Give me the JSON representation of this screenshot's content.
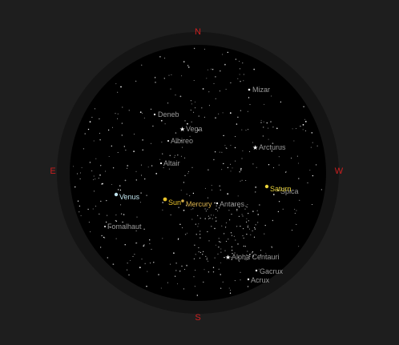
{
  "compass": {
    "north": "N",
    "south": "S",
    "east": "E",
    "west": "W"
  },
  "colors": {
    "background": "#1e1e1e",
    "sky_outer": "#141414",
    "sky_inner": "#000000",
    "compass": "#cc1f1f",
    "star_label": "#9a9a9a",
    "star": "#ffffff"
  },
  "named_stars": [
    {
      "name": "Mizar"
    },
    {
      "name": "Deneb"
    },
    {
      "name": "Vega"
    },
    {
      "name": "Albireo"
    },
    {
      "name": "Arcturus"
    },
    {
      "name": "Altair"
    },
    {
      "name": "Spica"
    },
    {
      "name": "Antares"
    },
    {
      "name": "Fomalhaut"
    },
    {
      "name": "Alpha Centauri"
    },
    {
      "name": "Gacrux"
    },
    {
      "name": "Acrux"
    }
  ],
  "planets": [
    {
      "name": "Venus",
      "color": "#bfe3ee"
    },
    {
      "name": "Sun",
      "color": "#e8c22a"
    },
    {
      "name": "Mercury",
      "color": "#d8b04a"
    },
    {
      "name": "Saturn",
      "color": "#e8d23a"
    }
  ]
}
